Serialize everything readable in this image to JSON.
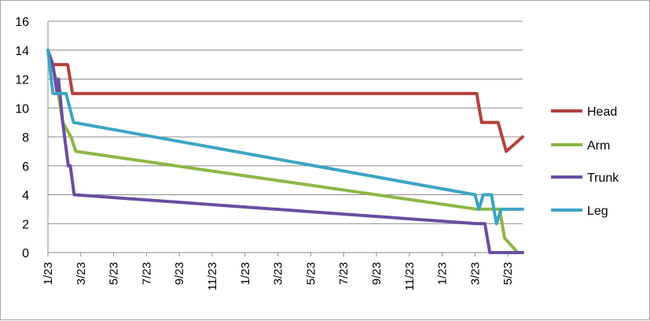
{
  "chart_data": {
    "type": "line",
    "title": "",
    "xlabel": "",
    "ylabel": "",
    "ylim": [
      0,
      16
    ],
    "yticks": [
      0,
      2,
      4,
      6,
      8,
      10,
      12,
      14,
      16
    ],
    "grid": true,
    "legend": "right",
    "x_ticks": [
      "1/23",
      "3/23",
      "5/23",
      "7/23",
      "9/23",
      "11/23",
      "1/23",
      "3/23",
      "5/23",
      "7/23",
      "9/23",
      "11/23",
      "1/23",
      "3/23",
      "5/23"
    ],
    "series": [
      {
        "name": "Head",
        "color": "#b3403b",
        "points": [
          [
            0.0,
            14
          ],
          [
            0.1,
            13
          ],
          [
            0.6,
            13
          ],
          [
            0.75,
            11
          ],
          [
            13.05,
            11
          ],
          [
            13.2,
            9
          ],
          [
            13.7,
            9
          ],
          [
            13.95,
            7
          ],
          [
            14.45,
            8
          ]
        ]
      },
      {
        "name": "Arm",
        "color": "#8db648",
        "points": [
          [
            0.0,
            14
          ],
          [
            0.1,
            13
          ],
          [
            0.25,
            12
          ],
          [
            0.45,
            9
          ],
          [
            0.7,
            8
          ],
          [
            0.85,
            7
          ],
          [
            13.05,
            3
          ],
          [
            13.75,
            3
          ],
          [
            13.9,
            1
          ],
          [
            14.3,
            0
          ]
        ]
      },
      {
        "name": "Trunk",
        "color": "#6a4da0",
        "points": [
          [
            0.0,
            14
          ],
          [
            0.15,
            13
          ],
          [
            0.28,
            11
          ],
          [
            0.32,
            12
          ],
          [
            0.45,
            9
          ],
          [
            0.62,
            6
          ],
          [
            0.68,
            6
          ],
          [
            0.8,
            4
          ],
          [
            13.05,
            2
          ],
          [
            13.3,
            2
          ],
          [
            13.45,
            0
          ],
          [
            14.45,
            0
          ]
        ]
      },
      {
        "name": "Leg",
        "color": "#3da4c4",
        "points": [
          [
            0.0,
            14
          ],
          [
            0.15,
            11
          ],
          [
            0.55,
            11
          ],
          [
            0.78,
            9
          ],
          [
            13.0,
            4
          ],
          [
            13.12,
            3
          ],
          [
            13.25,
            4
          ],
          [
            13.5,
            4
          ],
          [
            13.65,
            2
          ],
          [
            13.8,
            3
          ],
          [
            14.45,
            3
          ]
        ]
      }
    ]
  }
}
